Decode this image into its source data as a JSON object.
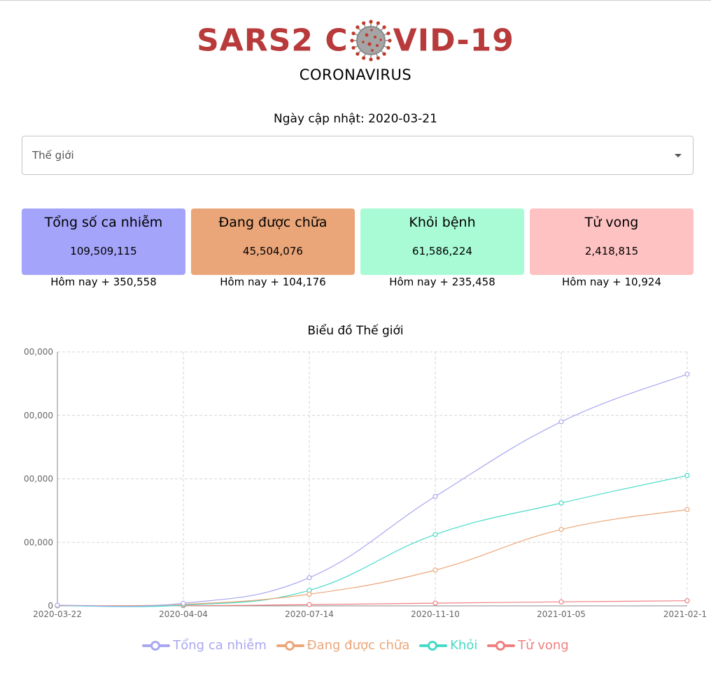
{
  "header": {
    "title_left": "SARS2 C",
    "title_right": "VID-19",
    "subtitle": "CORONAVIRUS",
    "virus_icon": "coronavirus-icon"
  },
  "updated": {
    "label": "Ngày cập nhật: 2020-03-21"
  },
  "country_select": {
    "value": "Thế giới",
    "icon": "caret-down-icon"
  },
  "cards": [
    {
      "title": "Tổng số ca nhiễm",
      "value": "109,509,115",
      "today": "Hôm nay + 350,558",
      "color": "#a4a4fa"
    },
    {
      "title": "Đang được chữa",
      "value": "45,504,076",
      "today": "Hôm nay + 104,176",
      "color": "#eaa679"
    },
    {
      "title": "Khỏi bệnh",
      "value": "61,586,224",
      "today": "Hôm nay + 235,458",
      "color": "#a8fbd4"
    },
    {
      "title": "Tử vong",
      "value": "2,418,815",
      "today": "Hôm nay + 10,924",
      "color": "#fec2c2"
    }
  ],
  "chart_title": "Biểu đồ Thế giới",
  "chart_data": {
    "type": "line",
    "x": [
      "2020-03-22",
      "2020-04-04",
      "2020-07-14",
      "2020-11-10",
      "2021-01-05",
      "2021-02-1"
    ],
    "y_tick_labels": [
      "00,000",
      "00,000",
      "00,000",
      "00,000",
      "0"
    ],
    "ylim": [
      0,
      120000000
    ],
    "grid": true,
    "legend_position": "bottom",
    "series": [
      {
        "name": "Tổng ca nhiễm",
        "color": "#a9a7f0",
        "values": [
          300000,
          1200000,
          13300000,
          51700000,
          87000000,
          109500000
        ]
      },
      {
        "name": "Đang được chữa",
        "color": "#eba679",
        "values": [
          200000,
          700000,
          5500000,
          16900000,
          36100000,
          45500000
        ]
      },
      {
        "name": "Khỏi",
        "color": "#45dbc6",
        "values": [
          100000,
          300000,
          7300000,
          33700000,
          48600000,
          61600000
        ]
      },
      {
        "name": "Tử vong",
        "color": "#f08080",
        "values": [
          10000,
          60000,
          580000,
          1270000,
          1880000,
          2420000
        ]
      }
    ]
  }
}
